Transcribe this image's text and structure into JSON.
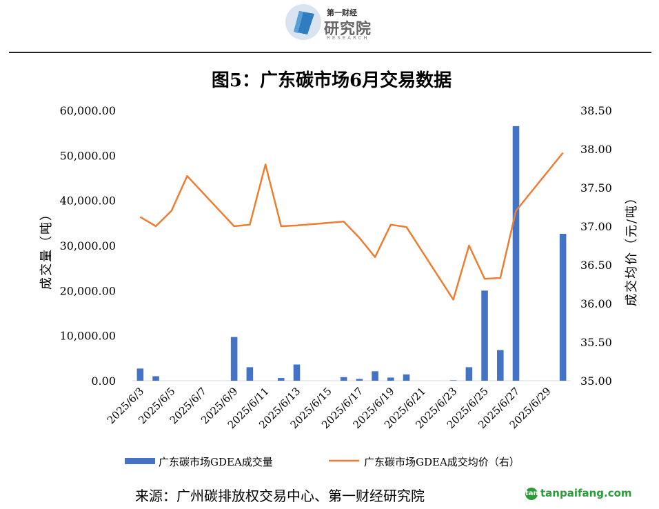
{
  "logo": {
    "top": "第一财经",
    "main": "研究院",
    "sub": "RESEARCH"
  },
  "colors": {
    "bar": "#4472c4",
    "line": "#ed7d31",
    "axis": "#d9d9d9"
  },
  "chart_data": {
    "type": "bar+line",
    "title": "图5：广东碳市场6月交易数据",
    "ylabel_left": "成交量（吨）",
    "ylabel_right": "成交均价（元/吨）",
    "ylim_left": [
      0,
      60000
    ],
    "ylim_right": [
      35.0,
      38.5
    ],
    "left_ticks": [
      "0.00",
      "10,000.00",
      "20,000.00",
      "30,000.00",
      "40,000.00",
      "50,000.00",
      "60,000.00"
    ],
    "right_ticks": [
      "35.00",
      "35.50",
      "36.00",
      "36.50",
      "37.00",
      "37.50",
      "38.00",
      "38.50"
    ],
    "x_range": [
      "2025/6/3",
      "2025/6/30"
    ],
    "x_tick_labels": [
      "2025/6/3",
      "2025/6/5",
      "2025/6/7",
      "2025/6/9",
      "2025/6/11",
      "2025/6/13",
      "2025/6/15",
      "2025/6/17",
      "2025/6/19",
      "2025/6/21",
      "2025/6/23",
      "2025/6/25",
      "2025/6/27",
      "2025/6/29"
    ],
    "series": [
      {
        "name": "广东碳市场GDEA成交量",
        "type": "bar",
        "axis": "left",
        "x": [
          "2025/6/3",
          "2025/6/4",
          "2025/6/9",
          "2025/6/10",
          "2025/6/12",
          "2025/6/13",
          "2025/6/16",
          "2025/6/17",
          "2025/6/18",
          "2025/6/19",
          "2025/6/20",
          "2025/6/23",
          "2025/6/24",
          "2025/6/25",
          "2025/6/26",
          "2025/6/27",
          "2025/6/30"
        ],
        "values": [
          2700,
          1000,
          9700,
          3000,
          600,
          3600,
          800,
          400,
          2100,
          700,
          1400,
          100,
          3000,
          20000,
          6800,
          56500,
          32600
        ]
      },
      {
        "name": "广东碳市场GDEA成交均价（右）",
        "type": "line",
        "axis": "right",
        "x": [
          "2025/6/3",
          "2025/6/4",
          "2025/6/5",
          "2025/6/6",
          "2025/6/9",
          "2025/6/10",
          "2025/6/11",
          "2025/6/12",
          "2025/6/13",
          "2025/6/16",
          "2025/6/17",
          "2025/6/18",
          "2025/6/19",
          "2025/6/20",
          "2025/6/23",
          "2025/6/24",
          "2025/6/25",
          "2025/6/26",
          "2025/6/27",
          "2025/6/30"
        ],
        "values": [
          37.12,
          37.0,
          37.2,
          37.65,
          37.0,
          37.02,
          37.8,
          37.0,
          37.01,
          37.06,
          36.85,
          36.6,
          37.02,
          36.99,
          36.05,
          36.75,
          36.32,
          36.33,
          37.2,
          37.95
        ]
      }
    ],
    "legend_position": "bottom"
  },
  "source": "来源：广州碳排放权交易中心、第一财经研究院",
  "watermark": {
    "icon": "tan",
    "text": "tanpaifang.com"
  }
}
